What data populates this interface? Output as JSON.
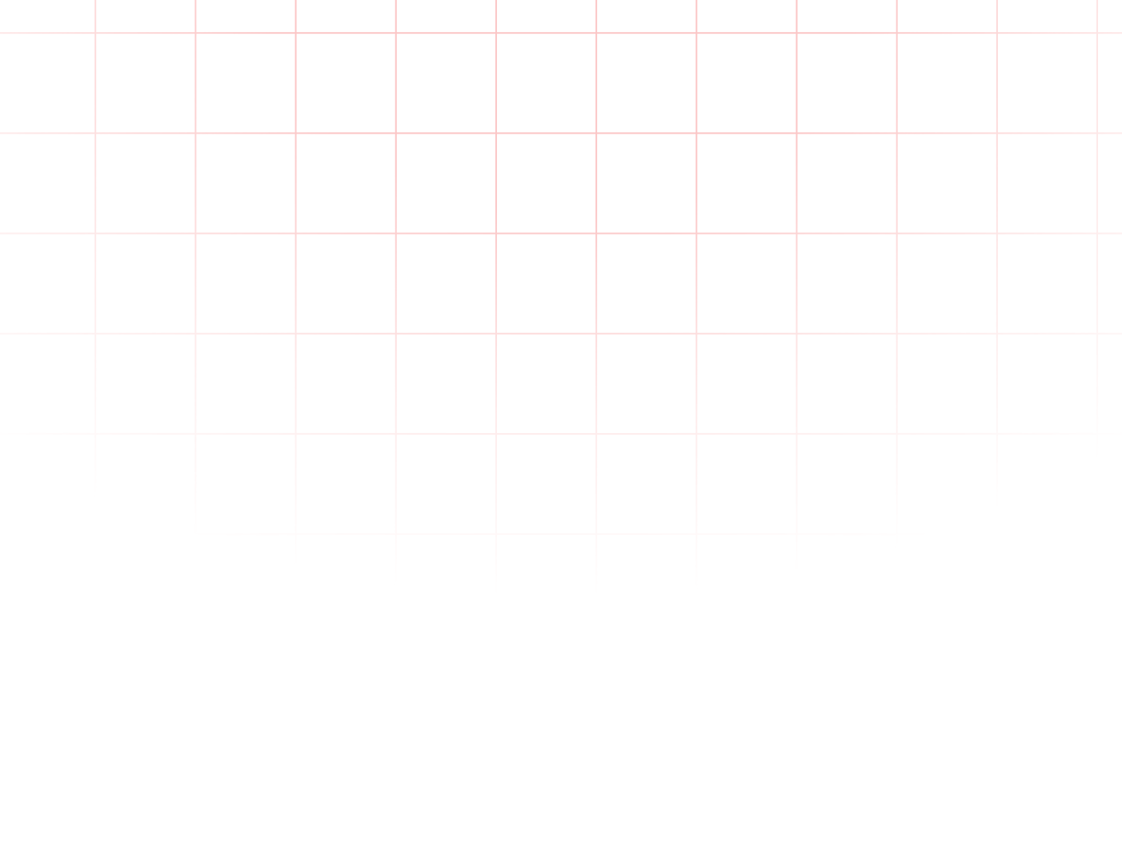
{
  "page": {
    "background_color": "#ffffff",
    "grid_color": "#fbc6c6"
  }
}
